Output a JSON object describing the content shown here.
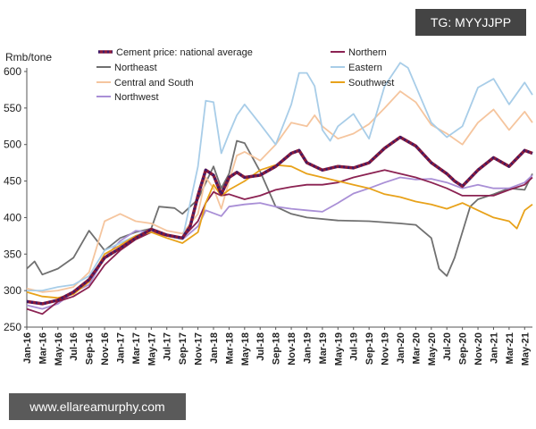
{
  "watermark": {
    "tag": "TG: MYYJJPP",
    "url": "www.ellareamurphy.com"
  },
  "chart_data": {
    "type": "line",
    "ylabel": "Rmb/tone",
    "ylim": [
      250,
      600
    ],
    "yticks": [
      250,
      300,
      350,
      400,
      450,
      500,
      550,
      600
    ],
    "xlim": [
      0,
      65
    ],
    "x_ticks": [
      {
        "label": "Jan-16",
        "x": 0
      },
      {
        "label": "Mar-16",
        "x": 2
      },
      {
        "label": "May-16",
        "x": 4
      },
      {
        "label": "Jul-16",
        "x": 6
      },
      {
        "label": "Sep-16",
        "x": 8
      },
      {
        "label": "Nov-16",
        "x": 10
      },
      {
        "label": "Jan-17",
        "x": 12
      },
      {
        "label": "Mar-17",
        "x": 14
      },
      {
        "label": "May-17",
        "x": 16
      },
      {
        "label": "Jul-17",
        "x": 18
      },
      {
        "label": "Sep-17",
        "x": 20
      },
      {
        "label": "Nov-17",
        "x": 22
      },
      {
        "label": "Jan-18",
        "x": 24
      },
      {
        "label": "Mar-18",
        "x": 26
      },
      {
        "label": "May-18",
        "x": 28
      },
      {
        "label": "Jul-18",
        "x": 30
      },
      {
        "label": "Sep-18",
        "x": 32
      },
      {
        "label": "Nov-18",
        "x": 34
      },
      {
        "label": "Jan-19",
        "x": 36
      },
      {
        "label": "Mar-19",
        "x": 38
      },
      {
        "label": "May-19",
        "x": 40
      },
      {
        "label": "Jul-19",
        "x": 42
      },
      {
        "label": "Sep-19",
        "x": 44
      },
      {
        "label": "Nov-19",
        "x": 46
      },
      {
        "label": "Jan-20",
        "x": 48
      },
      {
        "label": "Mar-20",
        "x": 50
      },
      {
        "label": "May-20",
        "x": 52
      },
      {
        "label": "Jul-20",
        "x": 54
      },
      {
        "label": "Sep-20",
        "x": 56
      },
      {
        "label": "Nov-20",
        "x": 58
      },
      {
        "label": "Jan-21",
        "x": 60
      },
      {
        "label": "Mar-21",
        "x": 62
      },
      {
        "label": "May-21",
        "x": 64
      }
    ],
    "legend": {
      "placement": "top"
    },
    "series": [
      {
        "name": "Cement price: national average",
        "color": "#3a1a6a",
        "dotted": true,
        "points": [
          [
            0,
            285
          ],
          [
            2,
            282
          ],
          [
            4,
            287
          ],
          [
            6,
            298
          ],
          [
            8,
            315
          ],
          [
            10,
            345
          ],
          [
            12,
            358
          ],
          [
            14,
            372
          ],
          [
            16,
            384
          ],
          [
            18,
            376
          ],
          [
            20,
            372
          ],
          [
            21,
            388
          ],
          [
            22,
            430
          ],
          [
            23,
            465
          ],
          [
            24,
            458
          ],
          [
            25,
            432
          ],
          [
            26,
            455
          ],
          [
            27,
            462
          ],
          [
            28,
            455
          ],
          [
            30,
            458
          ],
          [
            32,
            470
          ],
          [
            34,
            488
          ],
          [
            35,
            492
          ],
          [
            36,
            475
          ],
          [
            38,
            465
          ],
          [
            40,
            470
          ],
          [
            42,
            468
          ],
          [
            44,
            475
          ],
          [
            46,
            495
          ],
          [
            48,
            510
          ],
          [
            50,
            498
          ],
          [
            52,
            475
          ],
          [
            54,
            460
          ],
          [
            55,
            450
          ],
          [
            56,
            443
          ],
          [
            58,
            465
          ],
          [
            60,
            482
          ],
          [
            62,
            470
          ],
          [
            64,
            492
          ],
          [
            65,
            488
          ]
        ]
      },
      {
        "name": "Northeast",
        "color": "#707070",
        "points": [
          [
            0,
            330
          ],
          [
            1,
            340
          ],
          [
            2,
            322
          ],
          [
            4,
            330
          ],
          [
            6,
            345
          ],
          [
            8,
            382
          ],
          [
            10,
            355
          ],
          [
            12,
            372
          ],
          [
            14,
            380
          ],
          [
            16,
            385
          ],
          [
            17,
            415
          ],
          [
            19,
            413
          ],
          [
            20,
            405
          ],
          [
            22,
            425
          ],
          [
            24,
            470
          ],
          [
            25,
            440
          ],
          [
            26,
            460
          ],
          [
            27,
            505
          ],
          [
            28,
            502
          ],
          [
            30,
            463
          ],
          [
            32,
            415
          ],
          [
            34,
            405
          ],
          [
            36,
            400
          ],
          [
            40,
            396
          ],
          [
            44,
            395
          ],
          [
            48,
            392
          ],
          [
            50,
            390
          ],
          [
            52,
            372
          ],
          [
            53,
            330
          ],
          [
            54,
            320
          ],
          [
            55,
            345
          ],
          [
            56,
            380
          ],
          [
            57,
            415
          ],
          [
            58,
            425
          ],
          [
            60,
            432
          ],
          [
            62,
            440
          ],
          [
            64,
            438
          ],
          [
            65,
            460
          ]
        ]
      },
      {
        "name": "Central and South",
        "color": "#f5c59e",
        "points": [
          [
            0,
            303
          ],
          [
            2,
            298
          ],
          [
            4,
            300
          ],
          [
            6,
            305
          ],
          [
            8,
            325
          ],
          [
            10,
            395
          ],
          [
            12,
            405
          ],
          [
            14,
            395
          ],
          [
            16,
            392
          ],
          [
            18,
            382
          ],
          [
            20,
            378
          ],
          [
            22,
            405
          ],
          [
            23,
            455
          ],
          [
            24,
            440
          ],
          [
            25,
            412
          ],
          [
            26,
            450
          ],
          [
            27,
            485
          ],
          [
            28,
            490
          ],
          [
            30,
            478
          ],
          [
            32,
            500
          ],
          [
            34,
            530
          ],
          [
            36,
            525
          ],
          [
            37,
            540
          ],
          [
            38,
            525
          ],
          [
            40,
            508
          ],
          [
            42,
            515
          ],
          [
            44,
            528
          ],
          [
            46,
            550
          ],
          [
            48,
            573
          ],
          [
            50,
            558
          ],
          [
            52,
            527
          ],
          [
            54,
            515
          ],
          [
            56,
            500
          ],
          [
            58,
            530
          ],
          [
            60,
            548
          ],
          [
            62,
            520
          ],
          [
            64,
            545
          ],
          [
            65,
            530
          ]
        ]
      },
      {
        "name": "Northwest",
        "color": "#a98fd6",
        "points": [
          [
            0,
            280
          ],
          [
            2,
            275
          ],
          [
            4,
            282
          ],
          [
            6,
            298
          ],
          [
            8,
            308
          ],
          [
            10,
            345
          ],
          [
            12,
            368
          ],
          [
            14,
            382
          ],
          [
            16,
            380
          ],
          [
            18,
            375
          ],
          [
            20,
            370
          ],
          [
            22,
            388
          ],
          [
            23,
            410
          ],
          [
            25,
            402
          ],
          [
            26,
            415
          ],
          [
            28,
            418
          ],
          [
            30,
            420
          ],
          [
            32,
            415
          ],
          [
            34,
            412
          ],
          [
            36,
            410
          ],
          [
            38,
            408
          ],
          [
            40,
            420
          ],
          [
            42,
            433
          ],
          [
            44,
            440
          ],
          [
            46,
            448
          ],
          [
            48,
            455
          ],
          [
            50,
            452
          ],
          [
            52,
            453
          ],
          [
            54,
            448
          ],
          [
            56,
            440
          ],
          [
            58,
            445
          ],
          [
            60,
            440
          ],
          [
            62,
            440
          ],
          [
            64,
            448
          ],
          [
            65,
            458
          ]
        ]
      },
      {
        "name": "Northern",
        "color": "#8b2252",
        "points": [
          [
            0,
            275
          ],
          [
            2,
            268
          ],
          [
            4,
            285
          ],
          [
            6,
            292
          ],
          [
            8,
            305
          ],
          [
            10,
            335
          ],
          [
            12,
            355
          ],
          [
            14,
            370
          ],
          [
            16,
            380
          ],
          [
            18,
            375
          ],
          [
            20,
            372
          ],
          [
            22,
            395
          ],
          [
            23,
            420
          ],
          [
            24,
            435
          ],
          [
            25,
            430
          ],
          [
            26,
            432
          ],
          [
            28,
            425
          ],
          [
            30,
            430
          ],
          [
            32,
            438
          ],
          [
            34,
            442
          ],
          [
            36,
            445
          ],
          [
            38,
            445
          ],
          [
            40,
            448
          ],
          [
            42,
            455
          ],
          [
            44,
            460
          ],
          [
            46,
            465
          ],
          [
            48,
            460
          ],
          [
            50,
            455
          ],
          [
            52,
            448
          ],
          [
            54,
            440
          ],
          [
            56,
            430
          ],
          [
            58,
            430
          ],
          [
            60,
            430
          ],
          [
            62,
            438
          ],
          [
            64,
            445
          ],
          [
            65,
            455
          ]
        ]
      },
      {
        "name": "Eastern",
        "color": "#a8cde8",
        "points": [
          [
            0,
            300
          ],
          [
            2,
            300
          ],
          [
            4,
            305
          ],
          [
            6,
            308
          ],
          [
            8,
            320
          ],
          [
            10,
            355
          ],
          [
            12,
            365
          ],
          [
            14,
            375
          ],
          [
            16,
            385
          ],
          [
            18,
            375
          ],
          [
            20,
            370
          ],
          [
            22,
            470
          ],
          [
            23,
            560
          ],
          [
            24,
            558
          ],
          [
            25,
            488
          ],
          [
            26,
            515
          ],
          [
            27,
            540
          ],
          [
            28,
            555
          ],
          [
            30,
            528
          ],
          [
            32,
            500
          ],
          [
            34,
            555
          ],
          [
            35,
            598
          ],
          [
            36,
            598
          ],
          [
            37,
            580
          ],
          [
            38,
            520
          ],
          [
            39,
            505
          ],
          [
            40,
            525
          ],
          [
            42,
            542
          ],
          [
            44,
            508
          ],
          [
            46,
            580
          ],
          [
            48,
            612
          ],
          [
            49,
            605
          ],
          [
            50,
            580
          ],
          [
            52,
            530
          ],
          [
            54,
            510
          ],
          [
            56,
            525
          ],
          [
            58,
            578
          ],
          [
            60,
            590
          ],
          [
            62,
            555
          ],
          [
            64,
            585
          ],
          [
            65,
            568
          ]
        ]
      },
      {
        "name": "Southwest",
        "color": "#e8a21a",
        "points": [
          [
            0,
            298
          ],
          [
            2,
            292
          ],
          [
            4,
            290
          ],
          [
            6,
            295
          ],
          [
            8,
            312
          ],
          [
            10,
            350
          ],
          [
            12,
            362
          ],
          [
            14,
            375
          ],
          [
            16,
            380
          ],
          [
            18,
            372
          ],
          [
            20,
            365
          ],
          [
            22,
            380
          ],
          [
            23,
            420
          ],
          [
            24,
            445
          ],
          [
            25,
            430
          ],
          [
            26,
            438
          ],
          [
            28,
            450
          ],
          [
            30,
            465
          ],
          [
            32,
            472
          ],
          [
            34,
            470
          ],
          [
            36,
            460
          ],
          [
            38,
            455
          ],
          [
            40,
            450
          ],
          [
            42,
            445
          ],
          [
            44,
            440
          ],
          [
            46,
            432
          ],
          [
            48,
            428
          ],
          [
            50,
            422
          ],
          [
            52,
            418
          ],
          [
            54,
            412
          ],
          [
            56,
            420
          ],
          [
            58,
            410
          ],
          [
            60,
            400
          ],
          [
            62,
            395
          ],
          [
            63,
            385
          ],
          [
            64,
            410
          ],
          [
            65,
            418
          ]
        ]
      }
    ]
  }
}
